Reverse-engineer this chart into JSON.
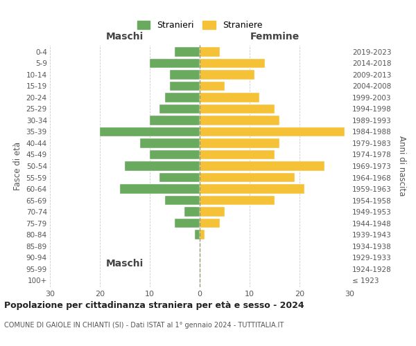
{
  "age_groups": [
    "100+",
    "95-99",
    "90-94",
    "85-89",
    "80-84",
    "75-79",
    "70-74",
    "65-69",
    "60-64",
    "55-59",
    "50-54",
    "45-49",
    "40-44",
    "35-39",
    "30-34",
    "25-29",
    "20-24",
    "15-19",
    "10-14",
    "5-9",
    "0-4"
  ],
  "birth_years": [
    "≤ 1923",
    "1924-1928",
    "1929-1933",
    "1934-1938",
    "1939-1943",
    "1944-1948",
    "1949-1953",
    "1954-1958",
    "1959-1963",
    "1964-1968",
    "1969-1973",
    "1974-1978",
    "1979-1983",
    "1984-1988",
    "1989-1993",
    "1994-1998",
    "1999-2003",
    "2004-2008",
    "2009-2013",
    "2014-2018",
    "2019-2023"
  ],
  "maschi": [
    0,
    0,
    0,
    0,
    1,
    5,
    3,
    7,
    16,
    8,
    15,
    10,
    12,
    20,
    10,
    8,
    7,
    6,
    6,
    10,
    5
  ],
  "femmine": [
    0,
    0,
    0,
    0,
    1,
    4,
    5,
    15,
    21,
    19,
    25,
    15,
    16,
    29,
    16,
    15,
    12,
    5,
    11,
    13,
    4
  ],
  "male_color": "#6aaa5e",
  "female_color": "#f5c237",
  "background_color": "#ffffff",
  "grid_color": "#cccccc",
  "title": "Popolazione per cittadinanza straniera per età e sesso - 2024",
  "subtitle": "COMUNE DI GAIOLE IN CHIANTI (SI) - Dati ISTAT al 1° gennaio 2024 - TUTTITALIA.IT",
  "xlabel_left": "Maschi",
  "xlabel_right": "Femmine",
  "ylabel_left": "Fasce di età",
  "ylabel_right": "Anni di nascita",
  "legend_male": "Stranieri",
  "legend_female": "Straniere",
  "xlim": 30,
  "bar_height": 0.8
}
